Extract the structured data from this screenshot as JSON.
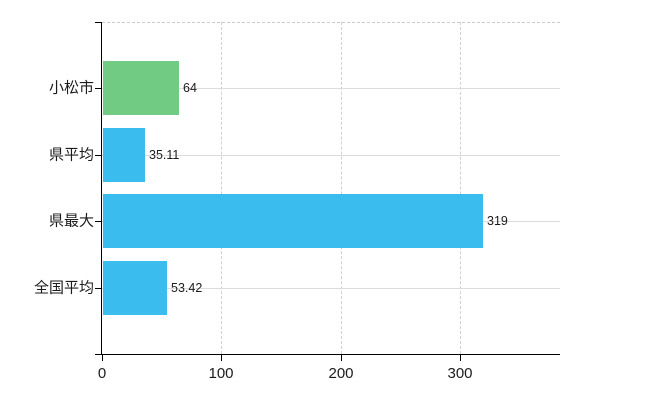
{
  "chart_data": {
    "type": "bar",
    "orientation": "horizontal",
    "title": "",
    "categories": [
      "小松市",
      "県平均",
      "県最大",
      "全国平均"
    ],
    "values": [
      64,
      35.11,
      319,
      53.42
    ],
    "value_labels": [
      "64",
      "35.11",
      "319",
      "53.42"
    ],
    "bar_colors": [
      "#72cb82",
      "#3abcee",
      "#3abcee",
      "#3abcee"
    ],
    "x_ticks": [
      0,
      100,
      200,
      300
    ],
    "x_tick_labels": [
      "0",
      "100",
      "200",
      "300"
    ],
    "xlim": [
      0,
      384
    ],
    "grid": true,
    "legend": "none"
  },
  "colors": {
    "bar_green": "#72cb82",
    "bar_blue": "#3abcee",
    "axis": "#000000",
    "text": "#1c1c1c",
    "h_gridline": "#dcdcdc",
    "v_gridline": "#d5ced5",
    "top_border": "#cfc8cf",
    "background": "#ffffff"
  }
}
